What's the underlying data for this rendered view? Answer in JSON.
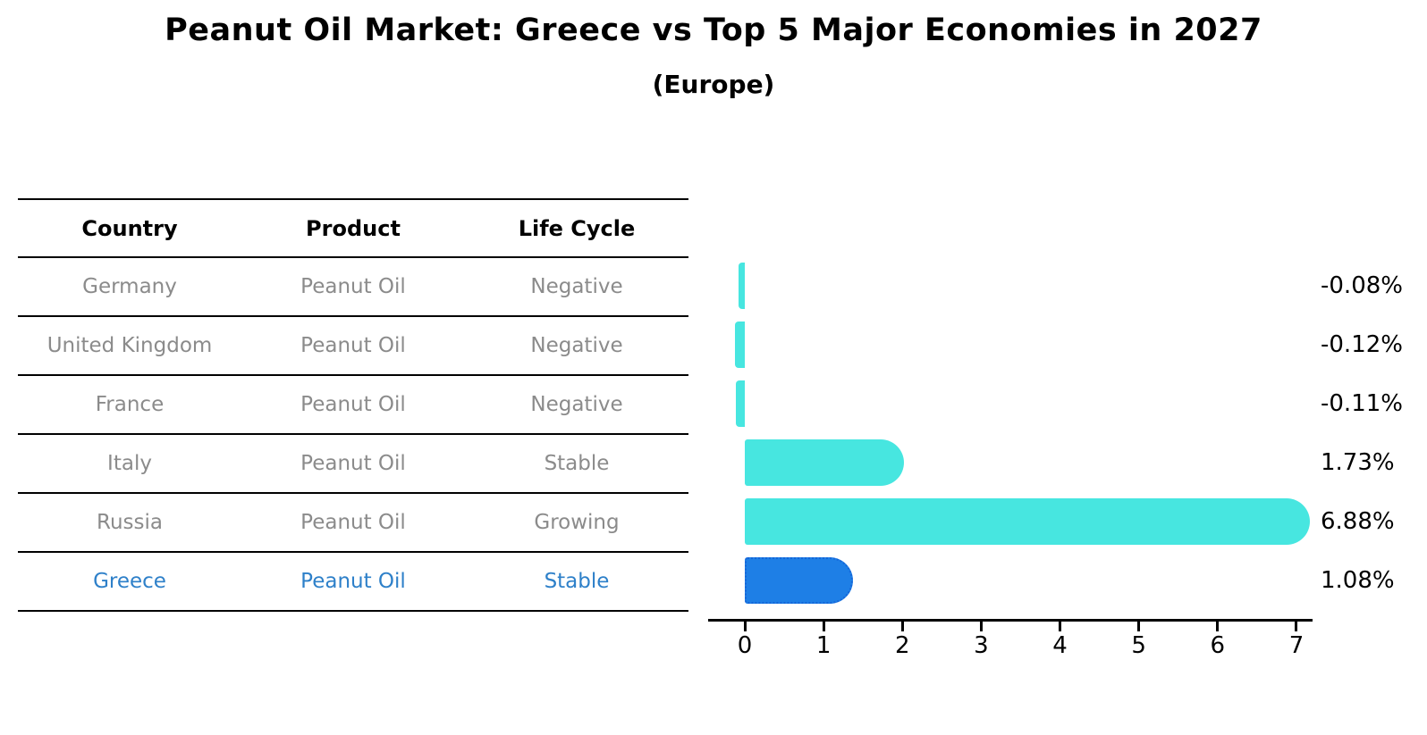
{
  "title": "Peanut Oil Market: Greece vs Top 5 Major Economies in 2027",
  "subtitle": "(Europe)",
  "table": {
    "headers": [
      "Country",
      "Product",
      "Life Cycle"
    ],
    "rows": [
      {
        "country": "Germany",
        "product": "Peanut Oil",
        "life_cycle": "Negative",
        "highlight": false
      },
      {
        "country": "United Kingdom",
        "product": "Peanut Oil",
        "life_cycle": "Negative",
        "highlight": false
      },
      {
        "country": "France",
        "product": "Peanut Oil",
        "life_cycle": "Negative",
        "highlight": false
      },
      {
        "country": "Italy",
        "product": "Peanut Oil",
        "life_cycle": "Stable",
        "highlight": false
      },
      {
        "country": "Russia",
        "product": "Peanut Oil",
        "life_cycle": "Growing",
        "highlight": false
      },
      {
        "country": "Greece",
        "product": "Peanut Oil",
        "life_cycle": "Stable",
        "highlight": true
      }
    ]
  },
  "chart_data": {
    "type": "bar",
    "orientation": "horizontal",
    "categories": [
      "Germany",
      "United Kingdom",
      "France",
      "Italy",
      "Russia",
      "Greece"
    ],
    "values": [
      -0.08,
      -0.12,
      -0.11,
      1.73,
      6.88,
      1.08
    ],
    "value_labels": [
      "-0.08%",
      "-0.12%",
      "-0.11%",
      "1.73%",
      "6.88%",
      "1.08%"
    ],
    "unit": "percent",
    "x_ticks": [
      "0",
      "1",
      "2",
      "3",
      "4",
      "5",
      "6",
      "7"
    ],
    "xlim": [
      -0.47,
      7.2
    ],
    "grid": false,
    "legend": "none",
    "bar_color": "#47e6e0",
    "highlight_bar_color": "#1e7fe6",
    "highlight_border_color": "#1565d8",
    "highlight_index": 5,
    "highlight_text_color": "#2e80c9",
    "muted_text_color": "#8b8b8b"
  }
}
